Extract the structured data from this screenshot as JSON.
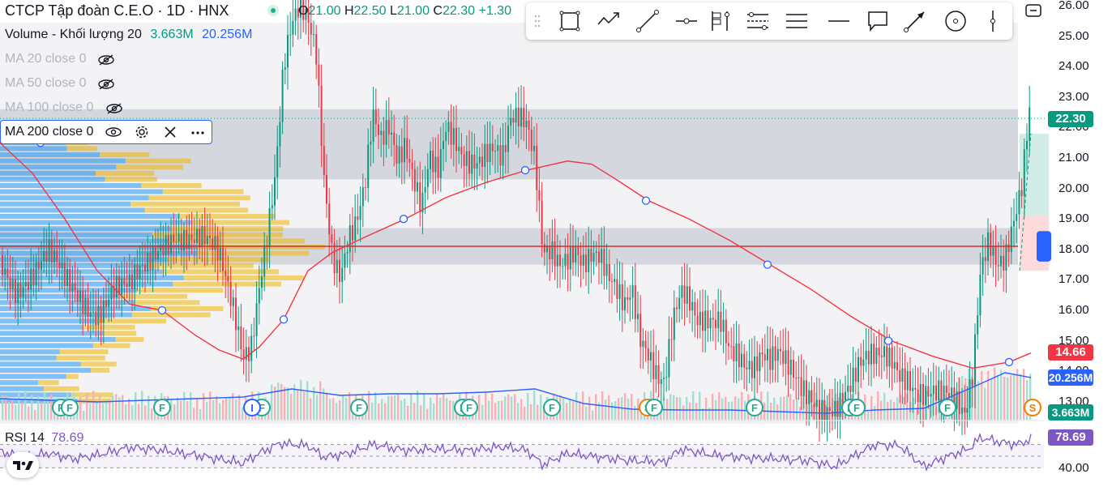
{
  "header": {
    "title": "CTCP Tập đoàn C.E.O · 1D · HNX",
    "ohlc": [
      {
        "label": "O",
        "value": "21.00"
      },
      {
        "label": "H",
        "value": "22.50"
      },
      {
        "label": "L",
        "value": "21.00"
      },
      {
        "label": "C",
        "value": "22.30"
      },
      {
        "label": "",
        "value": "+1.30"
      }
    ]
  },
  "indicators": {
    "volume": {
      "label": "Volume - Khối lượng 20",
      "value1": "3.663M",
      "value2": "20.256M"
    },
    "ma20": "MA 20 close 0",
    "ma50": "MA 50 close 0",
    "ma100": "MA 100 close 0",
    "ma200": "MA 200 close 0",
    "rsi": {
      "label": "RSI 14",
      "value": "78.69"
    }
  },
  "toolbar": {
    "tools": [
      "rectangle-icon",
      "path-icon",
      "trend-line-icon",
      "horizontal-ray-icon",
      "long-position-icon",
      "parallel-channel-icon",
      "horizontal-lines-icon",
      "horizontal-line-icon",
      "callout-icon",
      "arrow-icon",
      "circle-icon",
      "vertical-line-icon"
    ]
  },
  "price_tags": {
    "last": "22.30",
    "ma": "14.66",
    "vol_ma": "20.256M",
    "vol": "3.663M",
    "rsi": "78.69"
  },
  "rsi_axis": {
    "label": "40.00"
  },
  "events": [
    "F",
    "F",
    "F",
    "F",
    "I",
    "F",
    "F",
    "F",
    "F",
    "F",
    "S",
    "F",
    "F",
    "F",
    "F",
    "F",
    "F",
    "S"
  ],
  "colors": {
    "up": "#089981",
    "down": "#f23645",
    "ma200": "#f23645",
    "volume_ma": "#2962ff",
    "rsi": "#7e57c2",
    "zone": "#d1d4dc",
    "hline": "#d32f2f",
    "vp_up": "#2196f3",
    "vp_down": "#f0b400"
  },
  "chart_data": {
    "type": "candlestick",
    "symbol": "CEO",
    "interval": "1D",
    "y_axis": {
      "ticks": [
        "26.00",
        "25.00",
        "24.00",
        "23.00",
        "22.00",
        "21.00",
        "20.00",
        "19.00",
        "18.00",
        "17.00",
        "16.00",
        "15.00",
        "14.00",
        "13.00"
      ],
      "range": [
        12.6,
        26.2
      ]
    },
    "last": {
      "open": 21.0,
      "high": 22.5,
      "low": 21.0,
      "close": 22.3,
      "change": 1.3
    },
    "resistance_zones": [
      [
        20.3,
        22.6
      ],
      [
        17.5,
        18.7
      ]
    ],
    "support_line": 18.1,
    "price_path": [
      [
        0,
        17.8
      ],
      [
        20,
        17.0
      ],
      [
        40,
        17.2
      ],
      [
        60,
        17.6
      ],
      [
        80,
        16.8
      ],
      [
        100,
        16.5
      ],
      [
        120,
        16.2
      ],
      [
        140,
        16.8
      ],
      [
        160,
        16.5
      ],
      [
        180,
        17.2
      ],
      [
        200,
        18.3
      ],
      [
        215,
        18.8
      ],
      [
        230,
        18.6
      ],
      [
        250,
        18.2
      ],
      [
        270,
        17.5
      ],
      [
        290,
        15.8
      ],
      [
        300,
        14.7
      ],
      [
        310,
        15.2
      ],
      [
        320,
        17.2
      ],
      [
        330,
        18.8
      ],
      [
        340,
        20.5
      ],
      [
        350,
        23.8
      ],
      [
        360,
        25.0
      ],
      [
        370,
        25.6
      ],
      [
        380,
        25.3
      ],
      [
        390,
        24.5
      ],
      [
        400,
        20.5
      ],
      [
        410,
        18.2
      ],
      [
        420,
        17.5
      ],
      [
        430,
        18.6
      ],
      [
        440,
        18.9
      ],
      [
        450,
        19.8
      ],
      [
        460,
        22.0
      ],
      [
        470,
        21.2
      ],
      [
        480,
        21.8
      ],
      [
        490,
        21.0
      ],
      [
        500,
        21.7
      ],
      [
        510,
        20.8
      ],
      [
        520,
        19.8
      ],
      [
        530,
        21.3
      ],
      [
        540,
        20.5
      ],
      [
        550,
        21.7
      ],
      [
        560,
        21.2
      ],
      [
        570,
        20.6
      ],
      [
        580,
        20.6
      ],
      [
        590,
        20.9
      ],
      [
        600,
        21.5
      ],
      [
        610,
        21.8
      ],
      [
        620,
        21.4
      ],
      [
        630,
        22.5
      ],
      [
        640,
        22.3
      ],
      [
        650,
        21.8
      ],
      [
        660,
        20.5
      ],
      [
        670,
        17.5
      ],
      [
        680,
        17.8
      ],
      [
        690,
        17.6
      ],
      [
        700,
        18.0
      ],
      [
        710,
        18.4
      ],
      [
        720,
        17.9
      ],
      [
        730,
        18.0
      ],
      [
        740,
        17.7
      ],
      [
        750,
        16.8
      ],
      [
        760,
        16.3
      ],
      [
        770,
        15.8
      ],
      [
        780,
        16.5
      ],
      [
        790,
        15.2
      ],
      [
        800,
        14.9
      ],
      [
        810,
        14.3
      ],
      [
        820,
        14.0
      ],
      [
        830,
        15.8
      ],
      [
        840,
        16.5
      ],
      [
        850,
        16.0
      ],
      [
        860,
        15.2
      ],
      [
        870,
        15.3
      ],
      [
        880,
        15.5
      ],
      [
        890,
        15.8
      ],
      [
        900,
        15.1
      ],
      [
        910,
        15.0
      ],
      [
        920,
        14.5
      ],
      [
        930,
        14.2
      ],
      [
        940,
        14.4
      ],
      [
        950,
        14.0
      ],
      [
        960,
        14.2
      ],
      [
        970,
        14.0
      ],
      [
        980,
        13.8
      ],
      [
        990,
        13.6
      ],
      [
        1000,
        13.5
      ],
      [
        1010,
        13.2
      ],
      [
        1020,
        13.0
      ],
      [
        1030,
        12.8
      ],
      [
        1040,
        12.9
      ],
      [
        1050,
        13.2
      ],
      [
        1060,
        13.8
      ],
      [
        1070,
        14.2
      ],
      [
        1080,
        14.5
      ],
      [
        1090,
        14.8
      ],
      [
        1100,
        14.8
      ],
      [
        1110,
        14.3
      ],
      [
        1120,
        14.0
      ],
      [
        1130,
        13.3
      ],
      [
        1140,
        13.0
      ],
      [
        1150,
        12.9
      ],
      [
        1160,
        12.9
      ],
      [
        1170,
        13.0
      ],
      [
        1180,
        13.0
      ],
      [
        1190,
        12.8
      ],
      [
        1200,
        14.3
      ],
      [
        1210,
        17.8
      ],
      [
        1220,
        18.6
      ],
      [
        1230,
        17.5
      ],
      [
        1240,
        17.4
      ],
      [
        1250,
        18.4
      ],
      [
        1260,
        19.5
      ],
      [
        1270,
        22.3
      ]
    ],
    "ma200": [
      [
        0,
        21.5
      ],
      [
        40,
        20.5
      ],
      [
        80,
        19.0
      ],
      [
        120,
        17.3
      ],
      [
        160,
        16.2
      ],
      [
        200,
        16.0
      ],
      [
        240,
        15.2
      ],
      [
        270,
        14.7
      ],
      [
        300,
        14.4
      ],
      [
        320,
        14.8
      ],
      [
        350,
        15.7
      ],
      [
        380,
        17.3
      ],
      [
        410,
        17.9
      ],
      [
        450,
        18.4
      ],
      [
        500,
        19.0
      ],
      [
        550,
        19.7
      ],
      [
        600,
        20.2
      ],
      [
        650,
        20.6
      ],
      [
        700,
        20.9
      ],
      [
        730,
        20.8
      ],
      [
        760,
        20.3
      ],
      [
        800,
        19.6
      ],
      [
        850,
        19.0
      ],
      [
        900,
        18.3
      ],
      [
        950,
        17.5
      ],
      [
        1000,
        16.7
      ],
      [
        1050,
        15.8
      ],
      [
        1100,
        15.0
      ],
      [
        1150,
        14.5
      ],
      [
        1200,
        14.1
      ],
      [
        1245,
        14.3
      ],
      [
        1272,
        14.6
      ]
    ],
    "rsi_path": [
      [
        0,
        58
      ],
      [
        30,
        48
      ],
      [
        60,
        55
      ],
      [
        90,
        45
      ],
      [
        120,
        52
      ],
      [
        160,
        65
      ],
      [
        200,
        60
      ],
      [
        240,
        52
      ],
      [
        270,
        45
      ],
      [
        300,
        38
      ],
      [
        320,
        55
      ],
      [
        345,
        72
      ],
      [
        380,
        68
      ],
      [
        400,
        48
      ],
      [
        430,
        55
      ],
      [
        460,
        70
      ],
      [
        500,
        60
      ],
      [
        540,
        62
      ],
      [
        580,
        60
      ],
      [
        620,
        66
      ],
      [
        650,
        60
      ],
      [
        670,
        35
      ],
      [
        700,
        55
      ],
      [
        740,
        48
      ],
      [
        780,
        42
      ],
      [
        820,
        40
      ],
      [
        840,
        62
      ],
      [
        880,
        52
      ],
      [
        920,
        47
      ],
      [
        960,
        45
      ],
      [
        1000,
        42
      ],
      [
        1030,
        32
      ],
      [
        1060,
        55
      ],
      [
        1080,
        70
      ],
      [
        1110,
        68
      ],
      [
        1140,
        32
      ],
      [
        1170,
        50
      ],
      [
        1195,
        62
      ],
      [
        1210,
        82
      ],
      [
        1230,
        75
      ],
      [
        1255,
        70
      ],
      [
        1272,
        79
      ]
    ],
    "volume_ma_path": [
      [
        0,
        492
      ],
      [
        60,
        494
      ],
      [
        120,
        496
      ],
      [
        180,
        494
      ],
      [
        240,
        492
      ],
      [
        300,
        490
      ],
      [
        360,
        480
      ],
      [
        420,
        488
      ],
      [
        480,
        486
      ],
      [
        540,
        486
      ],
      [
        600,
        484
      ],
      [
        660,
        480
      ],
      [
        720,
        498
      ],
      [
        780,
        505
      ],
      [
        840,
        506
      ],
      [
        900,
        506
      ],
      [
        960,
        508
      ],
      [
        1020,
        510
      ],
      [
        1080,
        506
      ],
      [
        1140,
        504
      ],
      [
        1200,
        478
      ],
      [
        1240,
        460
      ],
      [
        1272,
        466
      ]
    ]
  }
}
